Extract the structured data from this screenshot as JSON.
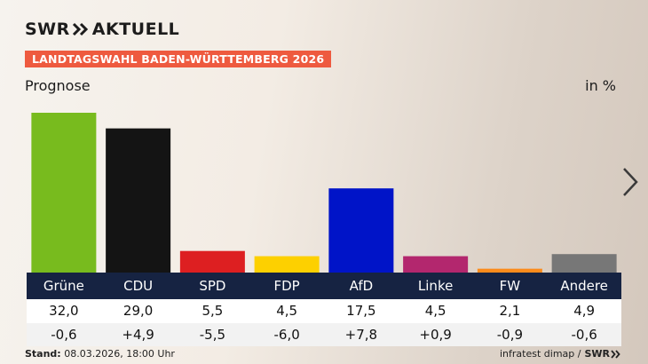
{
  "header": {
    "brand": "SWR",
    "brand_suffix": "AKTUELL",
    "banner": "LANDTAGSWAHL BADEN-WÜRTTEMBERG 2026",
    "subtitle": "Prognose",
    "unit": "in %"
  },
  "footer": {
    "stand_label": "Stand:",
    "stand_value": "08.03.2026, 18:00 Uhr",
    "source": "infratest dimap /",
    "source_brand": "SWR"
  },
  "icons": {
    "next": "chevron-right-icon",
    "logo_arrows": "double-chevron-icon"
  },
  "colors": {
    "accent": "#ee5a3f",
    "label_bar": "#162342"
  },
  "chart_data": {
    "type": "bar",
    "categories": [
      "Grüne",
      "CDU",
      "SPD",
      "FDP",
      "AfD",
      "Linke",
      "FW",
      "Andere"
    ],
    "values": [
      32.0,
      29.0,
      5.5,
      4.5,
      17.5,
      4.5,
      2.1,
      4.9
    ],
    "value_labels": [
      "32,0",
      "29,0",
      "5,5",
      "4,5",
      "17,5",
      "4,5",
      "2,1",
      "4,9"
    ],
    "diff_labels": [
      "-0,6",
      "+4,9",
      "-5,5",
      "-6,0",
      "+7,8",
      "+0,9",
      "-0,9",
      "-0,6"
    ],
    "colors": [
      "#78bb1e",
      "#141414",
      "#dd1f21",
      "#fdd000",
      "#0014c8",
      "#b3276e",
      "#fb8b1c",
      "#777777"
    ],
    "ylim": [
      0,
      32
    ]
  }
}
